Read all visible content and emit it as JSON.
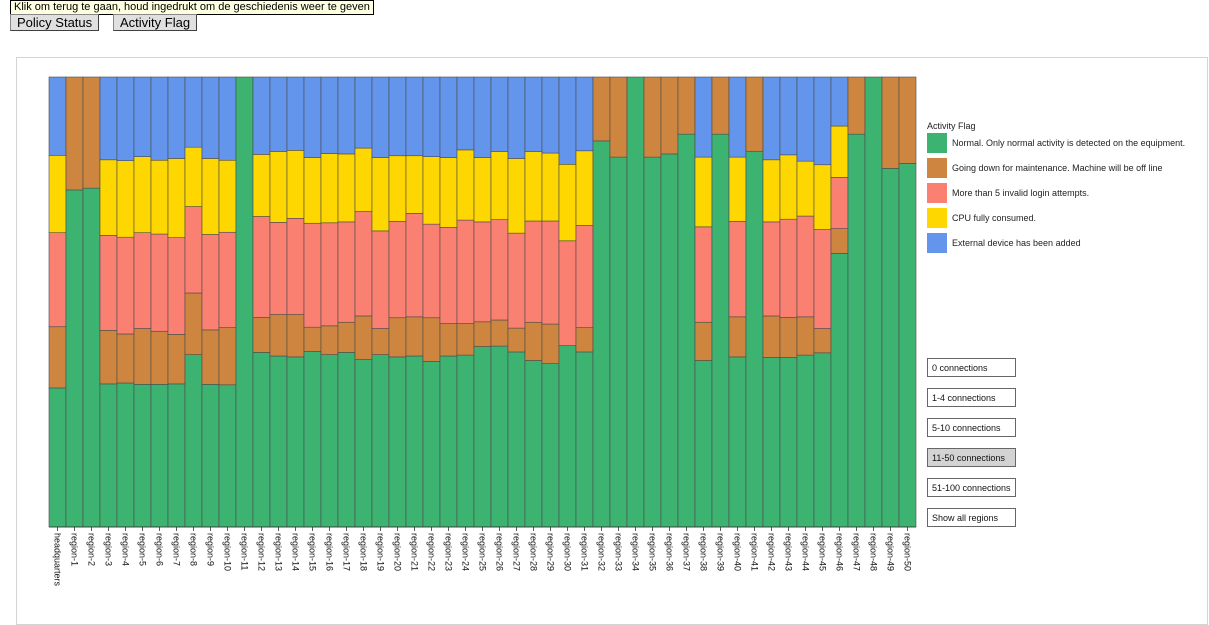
{
  "tooltip": "Klik om terug te gaan, houd ingedrukt om de geschiedenis weer te geven",
  "tabs": {
    "policy": "Policy Status",
    "activity": "Activity Flag"
  },
  "legend": {
    "title": "Activity Flag",
    "items": [
      {
        "label": "Normal. Only normal activity is detected on the equipment.",
        "color": "#3cb371"
      },
      {
        "label": "Going down for maintenance. Machine will be off line",
        "color": "#cd853f"
      },
      {
        "label": "More than 5 invalid login attempts.",
        "color": "#fa8072"
      },
      {
        "label": "CPU fully consumed.",
        "color": "#ffd700"
      },
      {
        "label": "External device has been added",
        "color": "#6495ed"
      }
    ]
  },
  "filters": {
    "items": [
      "0 connections",
      "1-4 connections",
      "5-10 connections",
      "11-50 connections",
      "51-100 connections",
      "Show all regions"
    ],
    "active_index": 3
  },
  "chart_data": {
    "type": "bar",
    "stacked": "100%",
    "title": "",
    "xlabel": "",
    "ylabel": "",
    "ylim": [
      0,
      1
    ],
    "categories": [
      "headquarters",
      "region-1",
      "region-2",
      "region-3",
      "region-4",
      "region-5",
      "region-6",
      "region-7",
      "region-8",
      "region-9",
      "region-10",
      "region-11",
      "region-12",
      "region-13",
      "region-14",
      "region-15",
      "region-16",
      "region-17",
      "region-18",
      "region-19",
      "region-20",
      "region-21",
      "region-22",
      "region-23",
      "region-24",
      "region-25",
      "region-26",
      "region-27",
      "region-28",
      "region-29",
      "region-30",
      "region-31",
      "region-32",
      "region-33",
      "region-34",
      "region-35",
      "region-36",
      "region-37",
      "region-38",
      "region-39",
      "region-40",
      "region-41",
      "region-42",
      "region-43",
      "region-44",
      "region-45",
      "region-46",
      "region-47",
      "region-48",
      "region-49",
      "region-50"
    ],
    "series": [
      {
        "name": "Normal. Only normal activity is detected on the equipment.",
        "color": "#3cb371",
        "values": [
          0.309,
          0.749,
          0.753,
          0.318,
          0.32,
          0.317,
          0.317,
          0.318,
          0.383,
          0.317,
          0.316,
          1.0,
          0.388,
          0.38,
          0.378,
          0.39,
          0.383,
          0.388,
          0.372,
          0.383,
          0.378,
          0.38,
          0.368,
          0.38,
          0.382,
          0.401,
          0.402,
          0.389,
          0.37,
          0.363,
          0.403,
          0.389,
          0.858,
          0.822,
          1.0,
          0.822,
          0.829,
          0.873,
          0.37,
          0.873,
          0.378,
          0.835,
          0.377,
          0.377,
          0.382,
          0.387,
          0.608,
          0.873,
          1.0,
          0.797,
          0.808
        ]
      },
      {
        "name": "Going down for maintenance. Machine will be off line",
        "color": "#cd853f",
        "values": [
          0.136,
          0.251,
          0.247,
          0.119,
          0.109,
          0.124,
          0.118,
          0.11,
          0.137,
          0.121,
          0.127,
          0,
          0.078,
          0.092,
          0.094,
          0.054,
          0.064,
          0.067,
          0.097,
          0.058,
          0.087,
          0.087,
          0.097,
          0.072,
          0.07,
          0.055,
          0.058,
          0.053,
          0.085,
          0.088,
          0,
          0.054,
          0.142,
          0.178,
          0,
          0.178,
          0.171,
          0.127,
          0.085,
          0.127,
          0.089,
          0.165,
          0.092,
          0.089,
          0.085,
          0.054,
          0.055,
          0.127,
          0,
          0.203,
          0.192
        ]
      },
      {
        "name": "More than 5 invalid login attempts.",
        "color": "#fa8072",
        "values": [
          0.209,
          0,
          0,
          0.211,
          0.215,
          0.213,
          0.216,
          0.215,
          0.192,
          0.212,
          0.212,
          0,
          0.224,
          0.205,
          0.214,
          0.231,
          0.229,
          0.223,
          0.232,
          0.217,
          0.214,
          0.23,
          0.208,
          0.214,
          0.23,
          0.222,
          0.223,
          0.211,
          0.225,
          0.229,
          0.233,
          0.227,
          0,
          0,
          0,
          0,
          0,
          0,
          0.212,
          0,
          0.212,
          0,
          0.209,
          0.218,
          0.224,
          0.22,
          0.114,
          0,
          0,
          0,
          0
        ]
      },
      {
        "name": "CPU fully consumed.",
        "color": "#ffd700",
        "values": [
          0.172,
          0,
          0,
          0.168,
          0.17,
          0.169,
          0.164,
          0.176,
          0.132,
          0.169,
          0.16,
          0,
          0.138,
          0.157,
          0.151,
          0.146,
          0.154,
          0.151,
          0.141,
          0.163,
          0.146,
          0.128,
          0.15,
          0.155,
          0.156,
          0.143,
          0.151,
          0.166,
          0.154,
          0.151,
          0.17,
          0.166,
          0,
          0,
          0,
          0,
          0,
          0,
          0.155,
          0,
          0.143,
          0,
          0.138,
          0.143,
          0.122,
          0.144,
          0.114,
          0,
          0,
          0,
          0
        ]
      },
      {
        "name": "External device has been added",
        "color": "#6495ed",
        "values": [
          0.174,
          0,
          0,
          0.184,
          0.186,
          0.177,
          0.185,
          0.181,
          0.156,
          0.181,
          0.185,
          0,
          0.172,
          0.166,
          0.163,
          0.179,
          0.17,
          0.171,
          0.158,
          0.179,
          0.175,
          0.175,
          0.177,
          0.179,
          0.162,
          0.179,
          0.166,
          0.181,
          0.166,
          0.169,
          0.194,
          0.164,
          0,
          0,
          0,
          0,
          0,
          0,
          0.178,
          0,
          0.178,
          0,
          0.184,
          0.173,
          0.187,
          0.195,
          0.109,
          0,
          0,
          0,
          0
        ]
      }
    ]
  }
}
